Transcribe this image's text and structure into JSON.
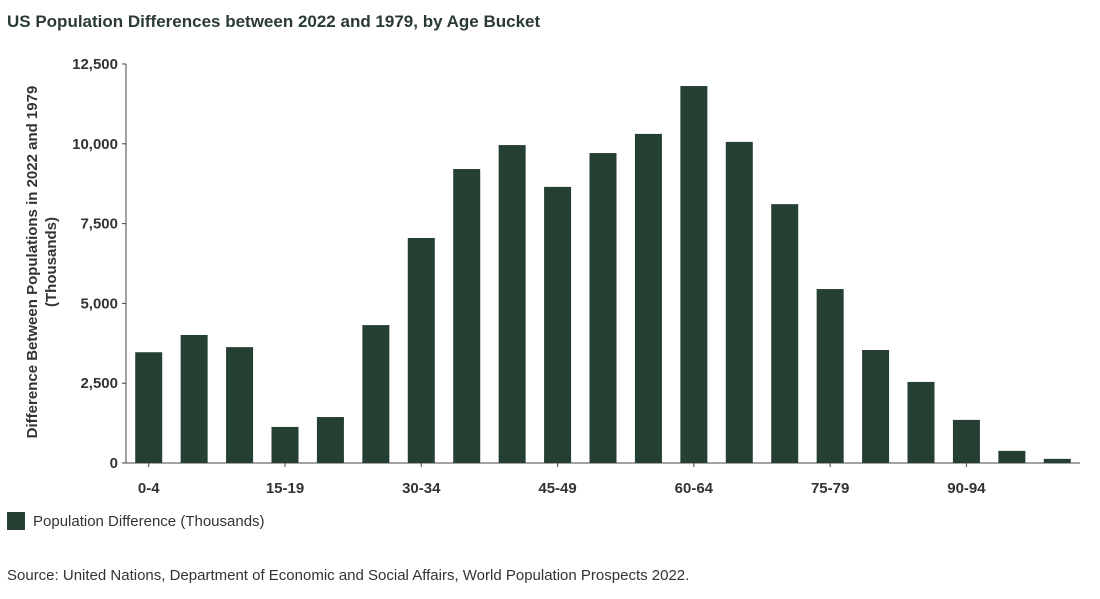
{
  "chart_data": {
    "type": "bar",
    "title": "US Population Differences between 2022 and 1979, by Age Bucket",
    "ylabel": "Difference Between Populations in 2022 and 1979 (Thousands)",
    "xlabel": "",
    "x_tick_labels": [
      "0-4",
      "15-19",
      "30-34",
      "45-49",
      "60-64",
      "75-79",
      "90-94"
    ],
    "y_tick_labels": [
      "0",
      "2,500",
      "5,000",
      "7,500",
      "10,000",
      "12,500"
    ],
    "y_ticks": [
      0,
      2500,
      5000,
      7500,
      10000,
      12500
    ],
    "ylim": [
      0,
      12500
    ],
    "series": [
      {
        "name": "Population Difference (Thousands)",
        "values": [
          3470,
          4010,
          3630,
          1130,
          1440,
          4320,
          7050,
          9210,
          9960,
          8650,
          9710,
          10310,
          11810,
          10060,
          8110,
          5450,
          3540,
          2540,
          1350,
          380,
          130
        ]
      }
    ],
    "color": "#263f33",
    "grid": false,
    "legend_position": "bottom-left",
    "source": "Source: United Nations, Department of Economic and Social Affairs, World Population Prospects 2022."
  }
}
